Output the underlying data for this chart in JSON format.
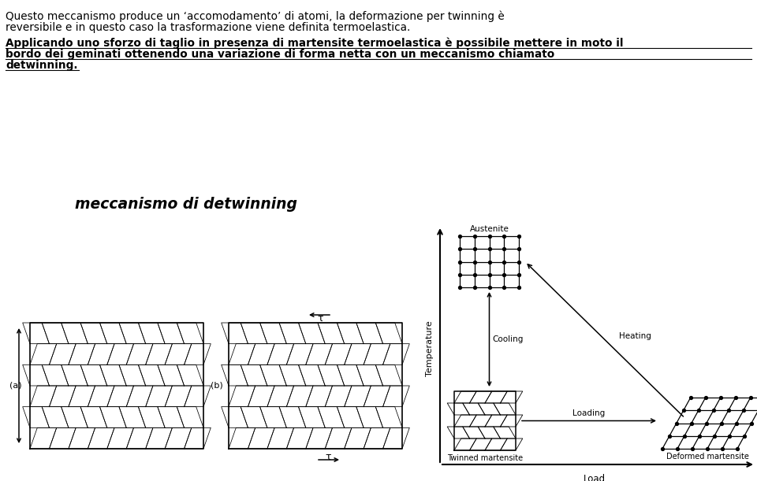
{
  "title_line1": "Questo meccanismo produce un ‘accomodamento’ di atomi, la deformazione per twinning è",
  "title_line2": "reversibile e in questo caso la trasformazione viene definita termoelastica.",
  "subtitle_line1": "Applicando uno sforzo di taglio in presenza di martensite termoelastica è possibile mettere in moto il",
  "subtitle_line2": "bordo dei geminati ottenendo una variazione di forma netta con un meccanismo chiamato",
  "subtitle_line3": "detwinning.",
  "section_title": "meccanismo di detwinning",
  "label_a": "(a)",
  "label_b": "(b)",
  "tau_label": "τ",
  "diagram_labels": {
    "austenite": "Austenite",
    "cooling": "Cooling",
    "heating": "Heating",
    "loading": "Loading",
    "twinned": "Twinned martensite",
    "deformed": "Deformed martensite",
    "temp_axis": "Temperature",
    "load_axis": "Load"
  }
}
